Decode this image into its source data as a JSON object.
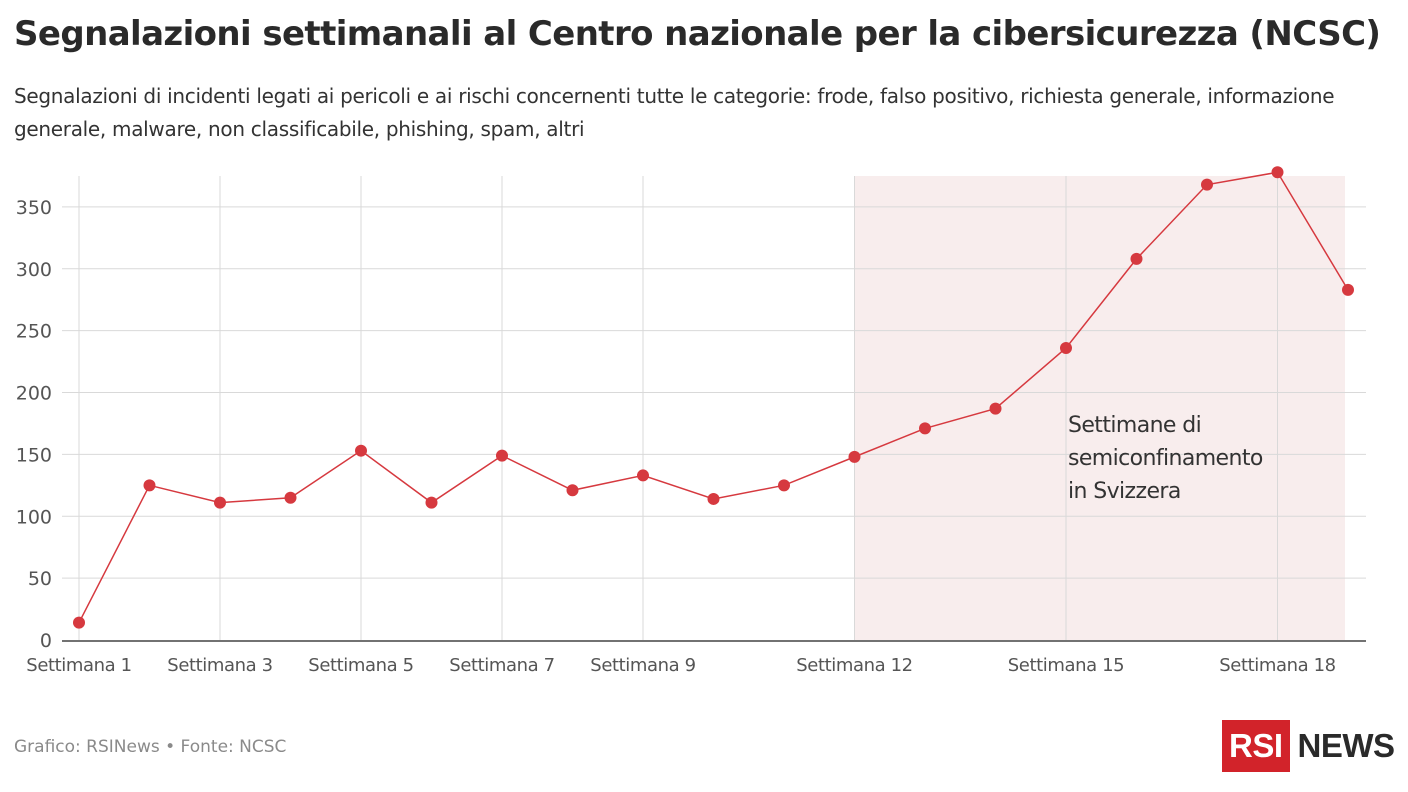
{
  "header": {
    "title": "Segnalazioni settimanali al Centro nazionale per la cibersicurezza (NCSC)",
    "subtitle": "Segnalazioni di incidenti legati ai pericoli e ai rischi concernenti tutte le categorie: frode, falso positivo, richiesta generale, informazione generale, malware, non classificabile, phishing, spam, altri"
  },
  "footer": {
    "source": "Grafico: RSINews • Fonte: NCSC"
  },
  "logo": {
    "box_text": "RSI",
    "word": "NEWS",
    "brand_color": "#d2232a"
  },
  "colors": {
    "series": "#d6393f",
    "shade": "#f8eded",
    "grid": "#d9d9d9",
    "axis_text": "#555555"
  },
  "chart_data": {
    "type": "line",
    "title": "Segnalazioni settimanali al Centro nazionale per la cibersicurezza (NCSC)",
    "xlabel": "",
    "ylabel": "",
    "ylim": [
      0,
      375
    ],
    "yticks": [
      0,
      50,
      100,
      150,
      200,
      250,
      300,
      350
    ],
    "grid": true,
    "categories": [
      "Settimana 1",
      "Settimana 2",
      "Settimana 3",
      "Settimana 4",
      "Settimana 5",
      "Settimana 6",
      "Settimana 7",
      "Settimana 8",
      "Settimana 9",
      "Settimana 10",
      "Settimana 11",
      "Settimana 12",
      "Settimana 13",
      "Settimana 14",
      "Settimana 15",
      "Settimana 16",
      "Settimana 17",
      "Settimana 18",
      "Settimana 19"
    ],
    "xtick_labels": [
      {
        "week": 1,
        "label": "Settimana 1"
      },
      {
        "week": 3,
        "label": "Settimana 3"
      },
      {
        "week": 5,
        "label": "Settimana 5"
      },
      {
        "week": 7,
        "label": "Settimana 7"
      },
      {
        "week": 9,
        "label": "Settimana 9"
      },
      {
        "week": 12,
        "label": "Settimana 12"
      },
      {
        "week": 15,
        "label": "Settimana 15"
      },
      {
        "week": 18,
        "label": "Settimana 18"
      }
    ],
    "series": [
      {
        "name": "Segnalazioni",
        "values": [
          14,
          125,
          111,
          115,
          153,
          111,
          149,
          121,
          133,
          114,
          125,
          148,
          171,
          187,
          236,
          308,
          368,
          378,
          283
        ]
      }
    ],
    "highlight": {
      "from_week": 12,
      "to_week": 19,
      "label_lines": [
        "Settimane di",
        "semiconfinamento",
        "in Svizzera"
      ]
    }
  }
}
